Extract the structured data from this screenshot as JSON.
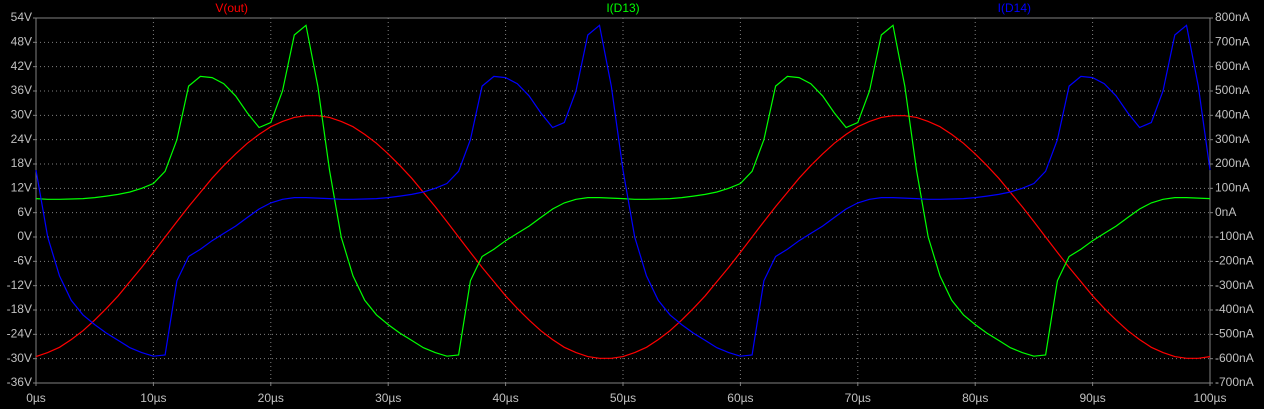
{
  "chart_data": {
    "type": "line",
    "background": "#000000",
    "grid": true,
    "x": [
      0,
      1,
      2,
      3,
      4,
      5,
      6,
      7,
      8,
      9,
      10,
      11,
      12,
      13,
      14,
      15,
      16,
      17,
      18,
      19,
      20,
      21,
      22,
      23,
      24,
      25,
      26,
      27,
      28,
      29,
      30,
      31,
      32,
      33,
      34,
      35,
      36,
      37,
      38,
      39,
      40,
      41,
      42,
      43,
      44,
      45,
      46,
      47,
      48,
      49,
      50,
      51,
      52,
      53,
      54,
      55,
      56,
      57,
      58,
      59,
      60,
      61,
      62,
      63,
      64,
      65,
      66,
      67,
      68,
      69,
      70,
      71,
      72,
      73,
      74,
      75,
      76,
      77,
      78,
      79,
      80,
      81,
      82,
      83,
      84,
      85,
      86,
      87,
      88,
      89,
      90,
      91,
      92,
      93,
      94,
      95,
      96,
      97,
      98,
      99,
      100
    ],
    "xlim": [
      0,
      100
    ],
    "xticks": [
      {
        "value": 0,
        "label": "0µs"
      },
      {
        "value": 10,
        "label": "10µs"
      },
      {
        "value": 20,
        "label": "20µs"
      },
      {
        "value": 30,
        "label": "30µs"
      },
      {
        "value": 40,
        "label": "40µs"
      },
      {
        "value": 50,
        "label": "50µs"
      },
      {
        "value": 60,
        "label": "60µs"
      },
      {
        "value": 70,
        "label": "70µs"
      },
      {
        "value": 80,
        "label": "80µs"
      },
      {
        "value": 90,
        "label": "90µs"
      },
      {
        "value": 100,
        "label": "100µs"
      }
    ],
    "ylim": [
      -36,
      54
    ],
    "yticks": [
      {
        "value": 54,
        "label": "54V"
      },
      {
        "value": 48,
        "label": "48V"
      },
      {
        "value": 42,
        "label": "42V"
      },
      {
        "value": 36,
        "label": "36V"
      },
      {
        "value": 30,
        "label": "30V"
      },
      {
        "value": 24,
        "label": "24V"
      },
      {
        "value": 18,
        "label": "18V"
      },
      {
        "value": 12,
        "label": "12V"
      },
      {
        "value": 6,
        "label": "6V"
      },
      {
        "value": 0,
        "label": "0V"
      },
      {
        "value": -6,
        "label": "-6V"
      },
      {
        "value": -12,
        "label": "-12V"
      },
      {
        "value": -18,
        "label": "-18V"
      },
      {
        "value": -24,
        "label": "-24V"
      },
      {
        "value": -30,
        "label": "-30V"
      },
      {
        "value": -36,
        "label": "-36V"
      }
    ],
    "y2lim": [
      -700,
      800
    ],
    "y2ticks": [
      {
        "value": 800,
        "label": "800nA"
      },
      {
        "value": 700,
        "label": "700nA"
      },
      {
        "value": 600,
        "label": "600nA"
      },
      {
        "value": 500,
        "label": "500nA"
      },
      {
        "value": 400,
        "label": "400nA"
      },
      {
        "value": 300,
        "label": "300nA"
      },
      {
        "value": 200,
        "label": "200nA"
      },
      {
        "value": 100,
        "label": "100nA"
      },
      {
        "value": 0,
        "label": "0nA"
      },
      {
        "value": -100,
        "label": "-100nA"
      },
      {
        "value": -200,
        "label": "-200nA"
      },
      {
        "value": -300,
        "label": "-300nA"
      },
      {
        "value": -400,
        "label": "-400nA"
      },
      {
        "value": -500,
        "label": "-500nA"
      },
      {
        "value": -600,
        "label": "-600nA"
      },
      {
        "value": -700,
        "label": "-700nA"
      }
    ],
    "series": [
      {
        "name": "V(out)",
        "color": "#ff0000",
        "values": [
          -29.5,
          -28.5,
          -27.2,
          -25.3,
          -23.1,
          -20.5,
          -17.6,
          -14.5,
          -11,
          -7.5,
          -3.8,
          0,
          3.8,
          7.5,
          11,
          14.5,
          17.6,
          20.5,
          23.1,
          25.3,
          27.2,
          28.5,
          29.5,
          29.9,
          29.9,
          29.5,
          28.5,
          27.2,
          25.3,
          23.1,
          20.5,
          17.6,
          14.5,
          11,
          7.5,
          3.8,
          0,
          -3.8,
          -7.5,
          -11,
          -14.5,
          -17.6,
          -20.5,
          -23.1,
          -25.3,
          -27.2,
          -28.5,
          -29.5,
          -29.9,
          -29.9,
          -29.5,
          -28.5,
          -27.2,
          -25.3,
          -23.1,
          -20.5,
          -17.6,
          -14.5,
          -11,
          -7.5,
          -3.8,
          0,
          3.8,
          7.5,
          11,
          14.5,
          17.6,
          20.5,
          23.1,
          25.3,
          27.2,
          28.5,
          29.5,
          29.9,
          29.9,
          29.5,
          28.5,
          27.2,
          25.3,
          23.1,
          20.5,
          17.6,
          14.5,
          11,
          7.5,
          3.8,
          0,
          -3.8,
          -7.5,
          -11,
          -14.5,
          -17.6,
          -20.5,
          -23.1,
          -25.3,
          -27.2,
          -28.5,
          -29.5,
          -29.9,
          -29.9,
          -29.5
        ]
      },
      {
        "name": "I(D13)",
        "color": "#00ff00",
        "axis": "y2",
        "values": [
          58,
          55,
          55,
          56,
          58,
          62,
          68,
          75,
          85,
          100,
          120,
          170,
          300,
          520,
          560,
          555,
          530,
          480,
          410,
          350,
          370,
          500,
          730,
          770,
          520,
          175,
          -100,
          -260,
          -360,
          -420,
          -460,
          -495,
          -525,
          -555,
          -575,
          -590,
          -585,
          -280,
          -180,
          -150,
          -115,
          -85,
          -55,
          -20,
          15,
          40,
          55,
          62,
          62,
          60,
          58,
          55,
          55,
          56,
          58,
          62,
          68,
          75,
          85,
          100,
          120,
          170,
          300,
          520,
          560,
          555,
          530,
          480,
          410,
          350,
          370,
          500,
          730,
          770,
          520,
          175,
          -100,
          -260,
          -360,
          -420,
          -460,
          -495,
          -525,
          -555,
          -575,
          -590,
          -585,
          -280,
          -180,
          -150,
          -115,
          -85,
          -55,
          -20,
          15,
          40,
          55,
          62,
          62,
          60,
          58
        ]
      },
      {
        "name": "I(D14)",
        "color": "#0000ff",
        "axis": "y2",
        "values": [
          175,
          -100,
          -260,
          -360,
          -420,
          -460,
          -495,
          -525,
          -555,
          -575,
          -590,
          -585,
          -280,
          -180,
          -150,
          -115,
          -85,
          -55,
          -20,
          15,
          40,
          55,
          62,
          62,
          60,
          58,
          55,
          55,
          56,
          58,
          62,
          68,
          75,
          85,
          100,
          120,
          170,
          300,
          520,
          560,
          555,
          530,
          480,
          410,
          350,
          370,
          500,
          730,
          770,
          520,
          175,
          -100,
          -260,
          -360,
          -420,
          -460,
          -495,
          -525,
          -555,
          -575,
          -590,
          -585,
          -280,
          -180,
          -150,
          -115,
          -85,
          -55,
          -20,
          15,
          40,
          55,
          62,
          62,
          60,
          58,
          55,
          55,
          56,
          58,
          62,
          68,
          75,
          85,
          100,
          120,
          170,
          300,
          520,
          560,
          555,
          530,
          480,
          410,
          350,
          370,
          500,
          730,
          770,
          520,
          175
        ]
      }
    ]
  }
}
